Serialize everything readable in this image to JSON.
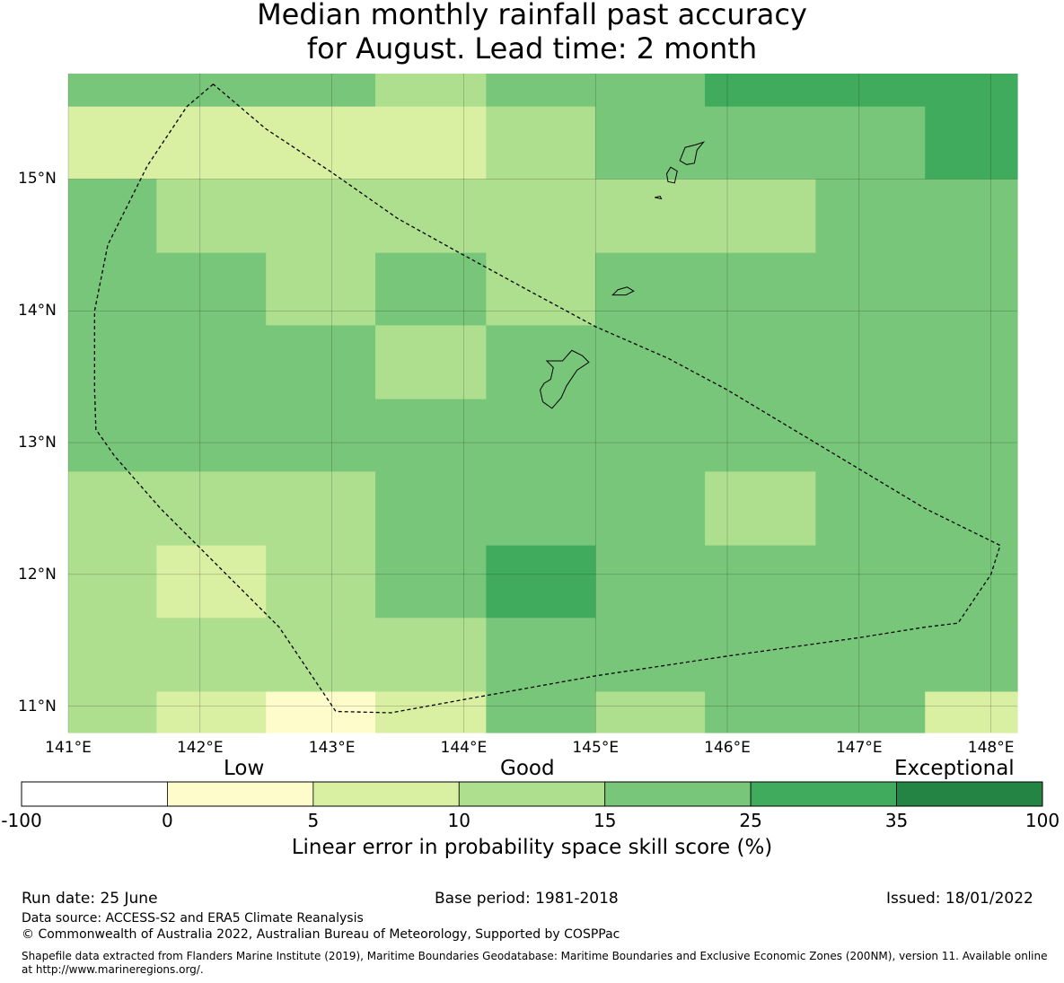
{
  "title": {
    "line1": "Median monthly rainfall past accuracy",
    "line2": "for August. Lead time: 2 month"
  },
  "map": {
    "lat_labels": [
      "15°N",
      "14°N",
      "13°N",
      "12°N",
      "11°N"
    ],
    "lon_labels": [
      "141°E",
      "142°E",
      "143°E",
      "144°E",
      "145°E",
      "146°E",
      "147°E",
      "148°E"
    ],
    "lat_values": [
      15,
      14,
      13,
      12,
      11
    ],
    "lon_values": [
      141,
      142,
      143,
      144,
      145,
      146,
      147,
      148
    ],
    "lon_range": [
      141,
      148.2
    ],
    "lat_range": [
      10.8,
      15.8
    ],
    "grid": true,
    "cells": [
      {
        "lon": [
          141,
          143.33
        ],
        "lat": [
          15.55,
          15.8
        ],
        "score": 20
      },
      {
        "lon": [
          143.33,
          144.17
        ],
        "lat": [
          15.55,
          15.8
        ],
        "score": 12
      },
      {
        "lon": [
          144.17,
          145.83
        ],
        "lat": [
          15.55,
          15.8
        ],
        "score": 20
      },
      {
        "lon": [
          145.83,
          148.2
        ],
        "lat": [
          15.55,
          15.8
        ],
        "score": 30
      },
      {
        "lon": [
          141,
          144.17
        ],
        "lat": [
          15.0,
          15.55
        ],
        "score": 7
      },
      {
        "lon": [
          144.17,
          145.0
        ],
        "lat": [
          15.0,
          15.55
        ],
        "score": 12
      },
      {
        "lon": [
          145.0,
          147.5
        ],
        "lat": [
          15.0,
          15.55
        ],
        "score": 20
      },
      {
        "lon": [
          147.5,
          148.2
        ],
        "lat": [
          15.0,
          15.55
        ],
        "score": 30
      },
      {
        "lon": [
          141,
          141.67
        ],
        "lat": [
          14.44,
          15.0
        ],
        "score": 20
      },
      {
        "lon": [
          141.67,
          146.67
        ],
        "lat": [
          14.44,
          15.0
        ],
        "score": 12
      },
      {
        "lon": [
          146.67,
          148.2
        ],
        "lat": [
          14.44,
          15.0
        ],
        "score": 20
      },
      {
        "lon": [
          141,
          142.5
        ],
        "lat": [
          13.89,
          14.44
        ],
        "score": 20
      },
      {
        "lon": [
          142.5,
          143.33
        ],
        "lat": [
          13.89,
          14.44
        ],
        "score": 12
      },
      {
        "lon": [
          143.33,
          144.17
        ],
        "lat": [
          13.89,
          14.44
        ],
        "score": 20
      },
      {
        "lon": [
          144.17,
          145.0
        ],
        "lat": [
          13.89,
          14.44
        ],
        "score": 12
      },
      {
        "lon": [
          145.0,
          148.2
        ],
        "lat": [
          13.89,
          14.44
        ],
        "score": 20
      },
      {
        "lon": [
          141,
          143.33
        ],
        "lat": [
          13.33,
          13.89
        ],
        "score": 20
      },
      {
        "lon": [
          143.33,
          144.17
        ],
        "lat": [
          13.33,
          13.89
        ],
        "score": 12
      },
      {
        "lon": [
          144.17,
          148.2
        ],
        "lat": [
          13.33,
          13.89
        ],
        "score": 20
      },
      {
        "lon": [
          141,
          148.2
        ],
        "lat": [
          12.78,
          13.33
        ],
        "score": 20
      },
      {
        "lon": [
          141,
          143.33
        ],
        "lat": [
          12.22,
          12.78
        ],
        "score": 12
      },
      {
        "lon": [
          143.33,
          145.83
        ],
        "lat": [
          12.22,
          12.78
        ],
        "score": 20
      },
      {
        "lon": [
          145.83,
          146.67
        ],
        "lat": [
          12.22,
          12.78
        ],
        "score": 12
      },
      {
        "lon": [
          146.67,
          148.2
        ],
        "lat": [
          12.22,
          12.78
        ],
        "score": 20
      },
      {
        "lon": [
          141,
          141.67
        ],
        "lat": [
          11.67,
          12.22
        ],
        "score": 12
      },
      {
        "lon": [
          141.67,
          142.5
        ],
        "lat": [
          11.67,
          12.22
        ],
        "score": 7
      },
      {
        "lon": [
          142.5,
          143.33
        ],
        "lat": [
          11.67,
          12.22
        ],
        "score": 12
      },
      {
        "lon": [
          143.33,
          144.17
        ],
        "lat": [
          11.67,
          12.22
        ],
        "score": 20
      },
      {
        "lon": [
          144.17,
          145.0
        ],
        "lat": [
          11.67,
          12.22
        ],
        "score": 30
      },
      {
        "lon": [
          145.0,
          148.2
        ],
        "lat": [
          11.67,
          12.22
        ],
        "score": 20
      },
      {
        "lon": [
          141,
          144.17
        ],
        "lat": [
          11.11,
          11.67
        ],
        "score": 12
      },
      {
        "lon": [
          144.17,
          148.2
        ],
        "lat": [
          11.11,
          11.67
        ],
        "score": 20
      },
      {
        "lon": [
          141,
          141.67
        ],
        "lat": [
          10.8,
          11.11
        ],
        "score": 12
      },
      {
        "lon": [
          141.67,
          142.5
        ],
        "lat": [
          10.8,
          11.11
        ],
        "score": 7
      },
      {
        "lon": [
          142.5,
          143.33
        ],
        "lat": [
          10.8,
          11.11
        ],
        "score": 3
      },
      {
        "lon": [
          143.33,
          144.17
        ],
        "lat": [
          10.8,
          11.11
        ],
        "score": 7
      },
      {
        "lon": [
          144.17,
          145.0
        ],
        "lat": [
          10.8,
          11.11
        ],
        "score": 20
      },
      {
        "lon": [
          145.0,
          145.83
        ],
        "lat": [
          10.8,
          11.11
        ],
        "score": 12
      },
      {
        "lon": [
          145.83,
          147.5
        ],
        "lat": [
          10.8,
          11.11
        ],
        "score": 20
      },
      {
        "lon": [
          147.5,
          148.2
        ],
        "lat": [
          10.8,
          11.11
        ],
        "score": 7
      }
    ],
    "eez_boundary": [
      [
        142.1,
        15.72
      ],
      [
        141.9,
        15.55
      ],
      [
        141.6,
        15.1
      ],
      [
        141.3,
        14.5
      ],
      [
        141.2,
        14.0
      ],
      [
        141.2,
        13.4
      ],
      [
        141.21,
        13.1
      ],
      [
        141.35,
        12.9
      ],
      [
        141.7,
        12.5
      ],
      [
        142.2,
        12.0
      ],
      [
        142.6,
        11.6
      ],
      [
        143.03,
        10.96
      ],
      [
        143.45,
        10.95
      ],
      [
        144.0,
        11.05
      ],
      [
        145.0,
        11.23
      ],
      [
        146.0,
        11.38
      ],
      [
        147.0,
        11.52
      ],
      [
        147.5,
        11.6
      ],
      [
        147.75,
        11.63
      ],
      [
        148.0,
        12.0
      ],
      [
        148.07,
        12.22
      ],
      [
        147.5,
        12.5
      ],
      [
        147.0,
        12.8
      ],
      [
        146.5,
        13.1
      ],
      [
        146.0,
        13.4
      ],
      [
        145.55,
        13.64
      ],
      [
        145.0,
        13.88
      ],
      [
        144.5,
        14.15
      ],
      [
        143.95,
        14.45
      ],
      [
        143.5,
        14.7
      ],
      [
        143.0,
        15.05
      ],
      [
        142.5,
        15.38
      ],
      [
        142.1,
        15.72
      ]
    ],
    "islands": [
      [
        [
          144.63,
          13.62
        ],
        [
          144.68,
          13.57
        ],
        [
          144.66,
          13.48
        ],
        [
          144.61,
          13.45
        ],
        [
          144.58,
          13.4
        ],
        [
          144.6,
          13.31
        ],
        [
          144.67,
          13.26
        ],
        [
          144.74,
          13.34
        ],
        [
          144.78,
          13.43
        ],
        [
          144.86,
          13.55
        ],
        [
          144.95,
          13.61
        ],
        [
          144.9,
          13.66
        ],
        [
          144.82,
          13.7
        ],
        [
          144.75,
          13.62
        ],
        [
          144.63,
          13.62
        ]
      ],
      [
        [
          145.64,
          15.14
        ],
        [
          145.68,
          15.24
        ],
        [
          145.76,
          15.26
        ],
        [
          145.82,
          15.28
        ],
        [
          145.77,
          15.22
        ],
        [
          145.75,
          15.12
        ],
        [
          145.69,
          15.11
        ],
        [
          145.64,
          15.14
        ]
      ],
      [
        [
          145.54,
          15.04
        ],
        [
          145.57,
          15.09
        ],
        [
          145.62,
          15.06
        ],
        [
          145.6,
          14.97
        ],
        [
          145.55,
          14.98
        ],
        [
          145.54,
          15.04
        ]
      ],
      [
        [
          145.13,
          14.12
        ],
        [
          145.17,
          14.16
        ],
        [
          145.24,
          14.18
        ],
        [
          145.29,
          14.15
        ],
        [
          145.23,
          14.12
        ],
        [
          145.13,
          14.12
        ]
      ],
      [
        [
          145.45,
          14.86
        ],
        [
          145.49,
          14.87
        ],
        [
          145.5,
          14.85
        ],
        [
          145.45,
          14.86
        ]
      ]
    ]
  },
  "legend": {
    "categories": {
      "low": "Low",
      "good": "Good",
      "exceptional": "Exceptional"
    },
    "bounds": [
      -100,
      0,
      5,
      10,
      15,
      25,
      35,
      100
    ],
    "bound_labels": [
      "-100",
      "0",
      "5",
      "10",
      "15",
      "25",
      "35",
      "100"
    ],
    "colors": [
      "#ffffff",
      "#fffccc",
      "#d9efa2",
      "#addf8e",
      "#78c679",
      "#41ab5d",
      "#238443"
    ],
    "title": "Linear error in probability space skill score (%)"
  },
  "footer": {
    "run_date": "Run date: 25 June",
    "base_period": "Base period: 1981-2018",
    "issued": "Issued: 18/01/2022",
    "data_source": "Data source: ACCESS-S2 and ERA5 Climate Reanalysis",
    "copyright": "© Commonwealth of Australia 2022, Australian Bureau of Meteorology, Supported by COSPPac",
    "shapefile": "Shapefile data extracted from Flanders Marine Institute (2019), Maritime Boundaries Geodatabase: Maritime Boundaries and Exclusive Economic Zones (200NM), version 11. Available online at http://www.marineregions.org/."
  }
}
